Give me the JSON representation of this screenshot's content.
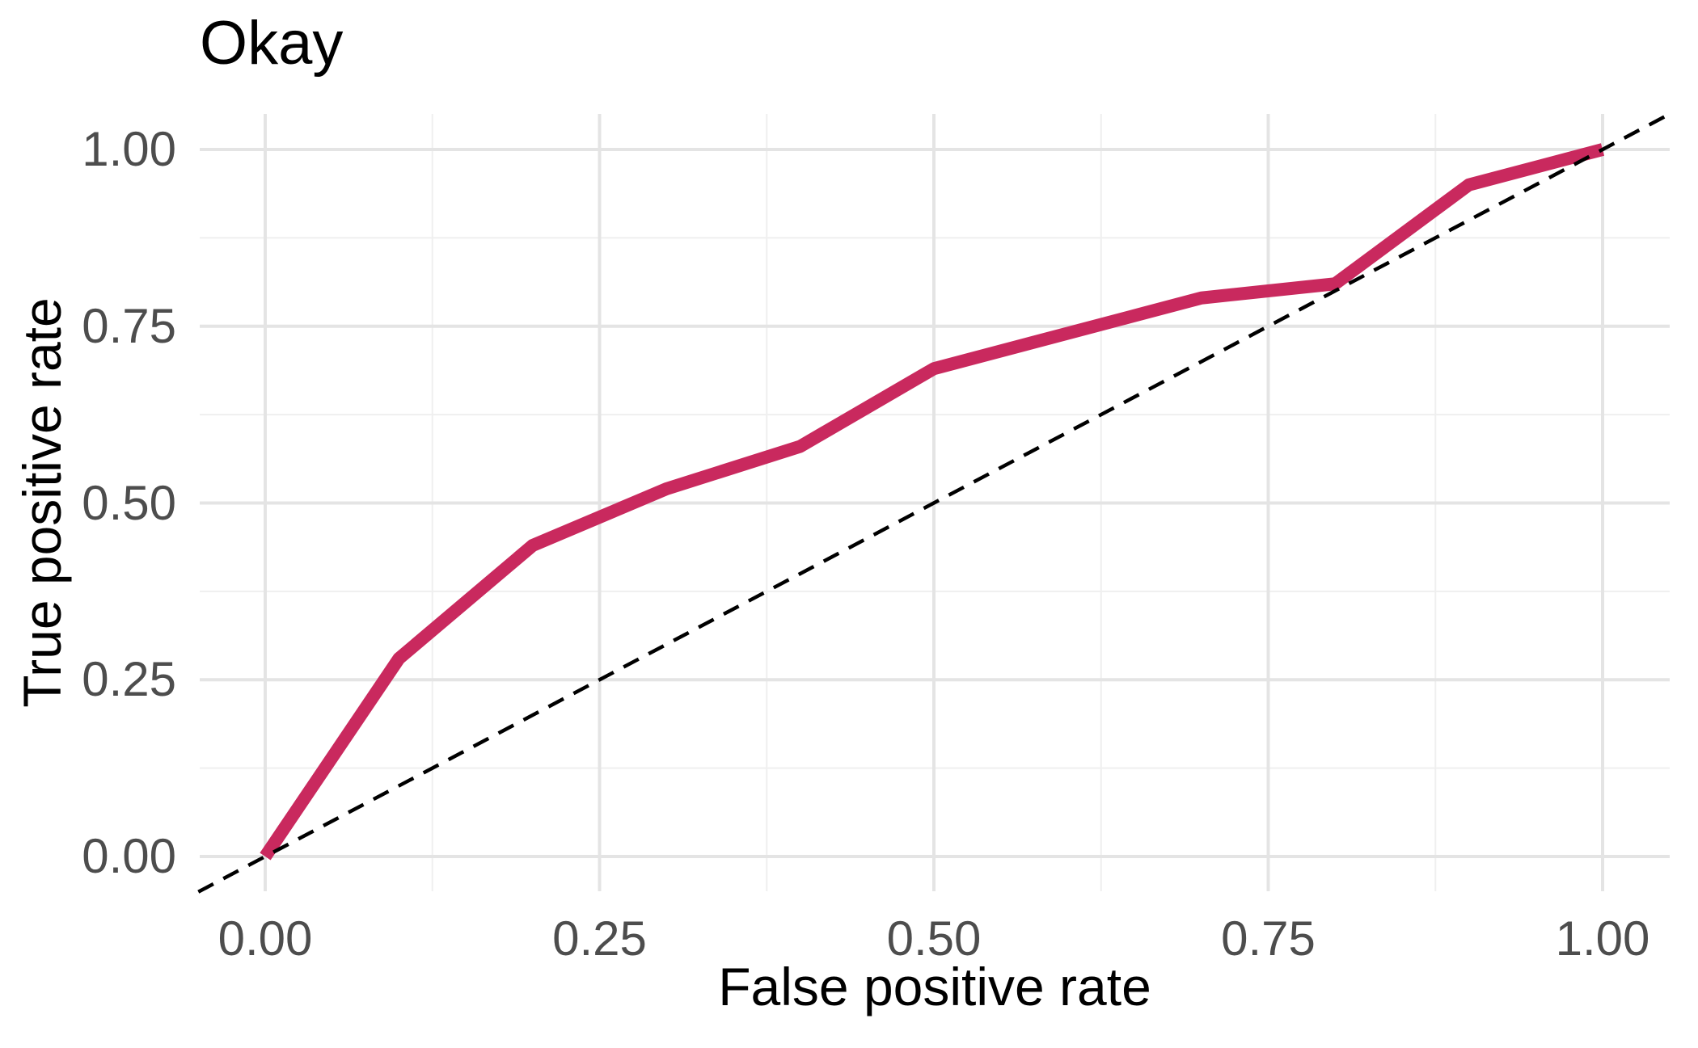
{
  "chart_data": {
    "type": "line",
    "title": "Okay",
    "xlabel": "False positive rate",
    "ylabel": "True positive rate",
    "xlim": [
      -0.05,
      1.05
    ],
    "ylim": [
      -0.05,
      1.05
    ],
    "grid": {
      "on": true,
      "major_breaks": [
        0,
        0.25,
        0.5,
        0.75,
        1.0
      ],
      "minor_breaks": [
        0.125,
        0.375,
        0.625,
        0.875
      ]
    },
    "x_tick_labels": [
      "0.00",
      "0.25",
      "0.50",
      "0.75",
      "1.00"
    ],
    "y_tick_labels": [
      "0.00",
      "0.25",
      "0.50",
      "0.75",
      "1.00"
    ],
    "x_tick_values": [
      0,
      0.25,
      0.5,
      0.75,
      1.0
    ],
    "y_tick_values": [
      0,
      0.25,
      0.5,
      0.75,
      1.0
    ],
    "legend": "none",
    "series": [
      {
        "name": "roc-curve",
        "type": "line",
        "style": "solid",
        "color": "#C9295E",
        "x": [
          0.0,
          0.1,
          0.2,
          0.3,
          0.4,
          0.5,
          0.6,
          0.7,
          0.8,
          0.9,
          1.0
        ],
        "y": [
          0.0,
          0.28,
          0.44,
          0.52,
          0.58,
          0.69,
          0.74,
          0.79,
          0.81,
          0.95,
          1.0
        ]
      },
      {
        "name": "chance-diagonal",
        "type": "line",
        "style": "dashed",
        "color": "#000000",
        "x": [
          -0.05,
          1.05
        ],
        "y": [
          -0.05,
          1.05
        ]
      }
    ]
  },
  "colors": {
    "background": "#ffffff",
    "grid_major": "#e4e4e4",
    "grid_minor": "#efefef",
    "tick_label": "#4d4d4d",
    "title_text": "#000000",
    "curve": "#C9295E",
    "diagonal": "#000000"
  }
}
